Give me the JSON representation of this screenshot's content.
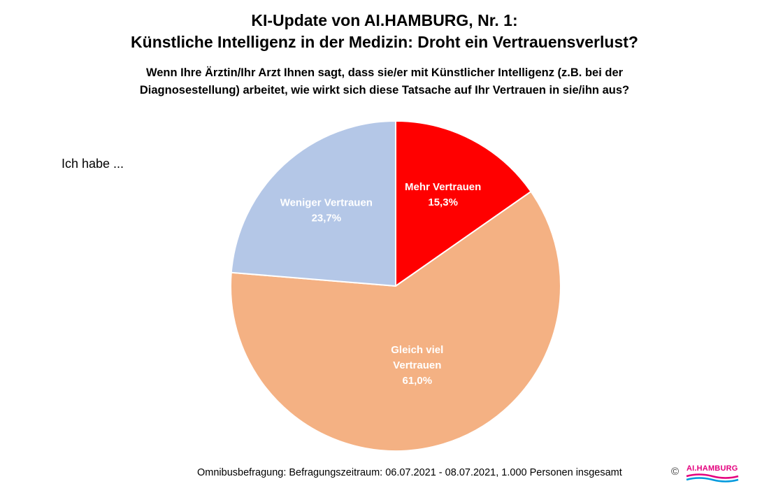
{
  "title": {
    "line1": "KI-Update von AI.HAMBURG, Nr. 1:",
    "line2": "Künstliche Intelligenz in der Medizin: Droht ein Vertrauensverlust?"
  },
  "question": {
    "line1": "Wenn Ihre Ärztin/Ihr Arzt Ihnen sagt, dass sie/er mit Künstlicher Intelligenz (z.B. bei der",
    "line2": "Diagnosestellung) arbeitet, wie wirkt sich diese Tatsache auf Ihr Vertrauen in sie/ihn aus?"
  },
  "prefix": "Ich habe ...",
  "chart_data": {
    "type": "pie",
    "unit": "%",
    "slices": [
      {
        "label": "Mehr Vertrauen",
        "label_lines": [
          "Mehr Vertrauen"
        ],
        "value": 15.3,
        "value_label": "15,3%",
        "color": "#ff0000"
      },
      {
        "label": "Gleich viel Vertrauen",
        "label_lines": [
          "Gleich viel",
          "Vertrauen"
        ],
        "value": 61.0,
        "value_label": "61,0%",
        "color": "#f4b183"
      },
      {
        "label": "Weniger Vertrauen",
        "label_lines": [
          "Weniger Vertrauen"
        ],
        "value": 23.7,
        "value_label": "23,7%",
        "color": "#b4c7e7"
      }
    ]
  },
  "footer": "Omnibusbefragung: Befragungszeitraum: 06.07.2021 - 08.07.2021, 1.000 Personen insgesamt",
  "copyright": "©",
  "logo": {
    "text": "AI.HAMBURG",
    "colors": {
      "text": "#e4007e",
      "wave1": "#e4007e",
      "wave2": "#0099dd"
    }
  }
}
